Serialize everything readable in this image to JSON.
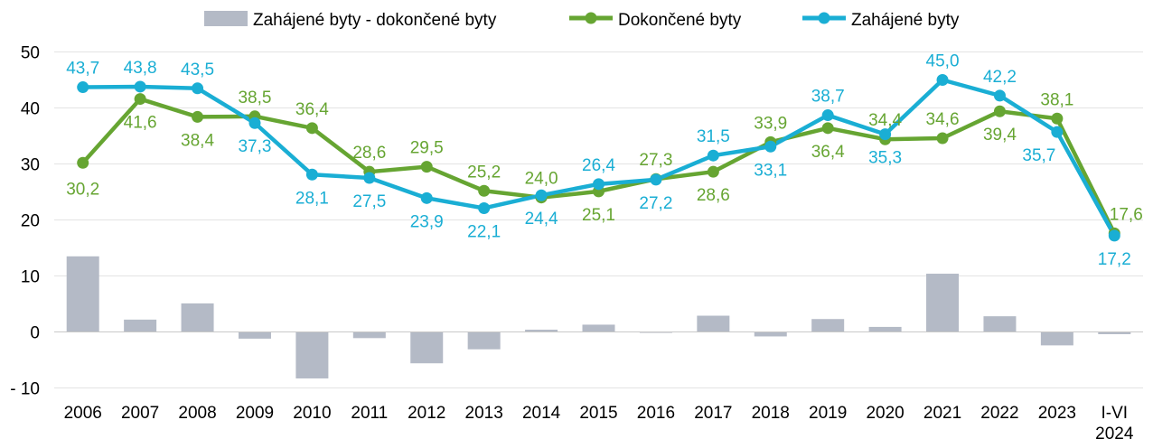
{
  "chart_data": {
    "type": "bar+line",
    "categories": [
      "2006",
      "2007",
      "2008",
      "2009",
      "2010",
      "2011",
      "2012",
      "2013",
      "2014",
      "2015",
      "2016",
      "2017",
      "2018",
      "2019",
      "2020",
      "2021",
      "2022",
      "2023",
      "I-VI 2024"
    ],
    "ylim": [
      -10,
      50
    ],
    "yticks": [
      "- 10",
      "0",
      "10",
      "20",
      "30",
      "40",
      "50"
    ],
    "grid": true,
    "legend_position": "top",
    "series": [
      {
        "name": "Zahájené byty - dokončené byty",
        "kind": "bar",
        "color": "#b4bac6",
        "values": [
          13.5,
          2.2,
          5.1,
          -1.2,
          -8.3,
          -1.1,
          -5.6,
          -3.1,
          0.4,
          1.3,
          -0.1,
          2.9,
          -0.8,
          2.3,
          0.9,
          10.4,
          2.8,
          -2.4,
          -0.4
        ]
      },
      {
        "name": "Dokončené byty",
        "kind": "line",
        "color": "#66a532",
        "values": [
          30.2,
          41.6,
          38.4,
          38.5,
          36.4,
          28.6,
          29.5,
          25.2,
          24.0,
          25.1,
          27.3,
          28.6,
          33.9,
          36.4,
          34.4,
          34.6,
          39.4,
          38.1,
          17.6
        ],
        "labels": [
          "30,2",
          "41,6",
          "38,4",
          "38,5",
          "36,4",
          "28,6",
          "29,5",
          "25,2",
          "24,0",
          "25,1",
          "27,3",
          "28,6",
          "33,9",
          "36,4",
          "34,4",
          "34,6",
          "39,4",
          "38,1",
          "17,6"
        ]
      },
      {
        "name": "Zahájené byty",
        "kind": "line",
        "color": "#1aaed4",
        "values": [
          43.7,
          43.8,
          43.5,
          37.3,
          28.1,
          27.5,
          23.9,
          22.1,
          24.4,
          26.4,
          27.2,
          31.5,
          33.1,
          38.7,
          35.3,
          45.0,
          42.2,
          35.7,
          17.2
        ],
        "labels": [
          "43,7",
          "43,8",
          "43,5",
          "37,3",
          "28,1",
          "27,5",
          "23,9",
          "22,1",
          "24,4",
          "26,4",
          "27,2",
          "31,5",
          "33,1",
          "38,7",
          "35,3",
          "45,0",
          "42,2",
          "35,7",
          "17,2"
        ]
      }
    ]
  }
}
